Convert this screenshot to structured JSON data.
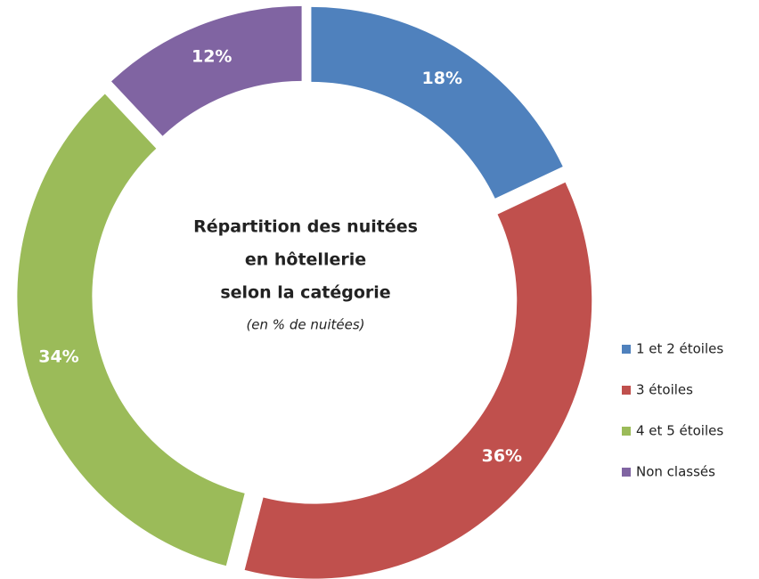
{
  "chart_data": {
    "type": "donut",
    "title": [
      "Répartition des nuitées",
      "en hôtellerie",
      "selon la catégorie"
    ],
    "subtitle": "(en % de nuitées)",
    "categories": [
      "1 et 2 étoiles",
      "3 étoiles",
      "4 et 5 étoiles",
      "Non classés"
    ],
    "values": [
      18,
      36,
      34,
      12
    ],
    "value_labels": [
      "18%",
      "36%",
      "34%",
      "12%"
    ],
    "colors": [
      "#4f81bd",
      "#c0504d",
      "#9bbb59",
      "#8064a2"
    ],
    "legend": "right"
  }
}
